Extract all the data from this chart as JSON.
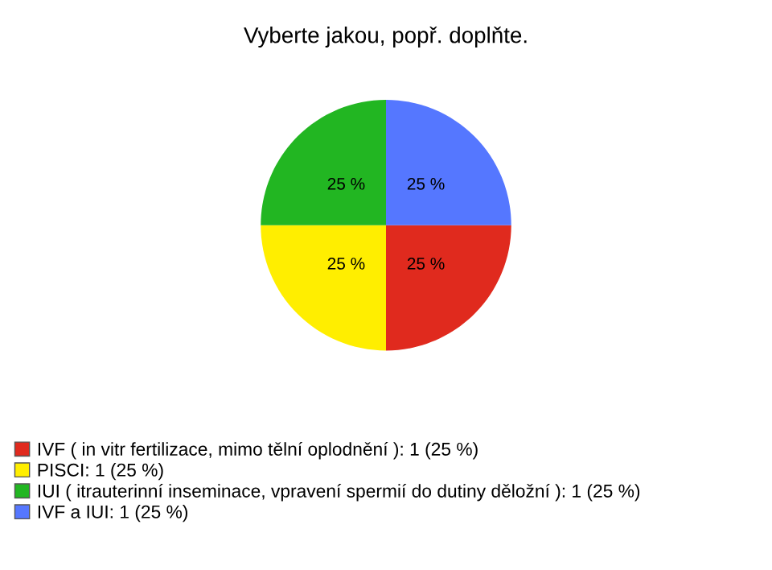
{
  "chart_data": {
    "type": "pie",
    "title": "Vyberte jakou, popř. doplňte.",
    "categories": [
      "IVF ( in vitr fertilizace, mimo tělní oplodnění ): 1 (25 %)",
      "PISCI: 1 (25 %)",
      "IUI ( itrauterinní inseminace, vpravení spermií do dutiny děložní ): 1 (25 %)",
      "IVF a IUI: 1 (25 %)"
    ],
    "values": [
      25,
      25,
      25,
      25
    ],
    "value_labels": [
      "25 %",
      "25 %",
      "25 %",
      "25 %"
    ],
    "colors": [
      "#e02a1e",
      "#ffee00",
      "#22b622",
      "#5577ff"
    ],
    "legend": "bottom left"
  }
}
